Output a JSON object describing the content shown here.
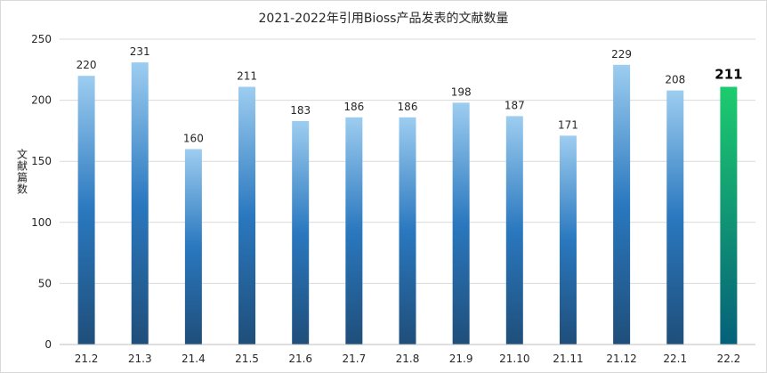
{
  "chart_data": {
    "type": "bar",
    "title": "2021-2022年引用Bioss产品发表的文献数量",
    "xlabel": "",
    "ylabel": "文献篇数",
    "ylim": [
      0,
      250
    ],
    "yticks": [
      0,
      50,
      100,
      150,
      200,
      250
    ],
    "grid": true,
    "legend": "none",
    "categories": [
      "21.2",
      "21.3",
      "21.4",
      "21.5",
      "21.6",
      "21.7",
      "21.8",
      "21.9",
      "21.10",
      "21.11",
      "21.12",
      "22.1",
      "22.2"
    ],
    "values": [
      220,
      231,
      160,
      211,
      183,
      186,
      186,
      198,
      187,
      171,
      229,
      208,
      211
    ],
    "highlight_index": 12,
    "colors": {
      "bar_top": "#9dcdf0",
      "bar_mid": "#2a78bf",
      "bar_bottom": "#1f4e7a",
      "highlight_top": "#1dcc6e",
      "highlight_bottom": "#05607a"
    }
  }
}
